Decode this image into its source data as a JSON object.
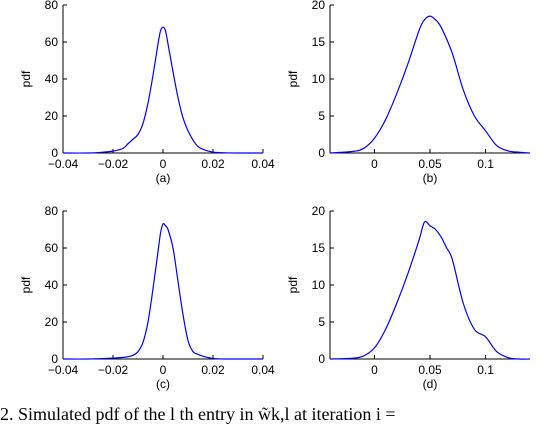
{
  "caption": "2.   Simulated pdf of the l th entry in w̃k,l at iteration i =",
  "colors": {
    "line": "#0000ff",
    "axis": "#000000"
  },
  "chart_data": [
    {
      "type": "line",
      "sublabel": "(a)",
      "ylabel": "pdf",
      "xlim": [
        -0.04,
        0.04
      ],
      "ylim": [
        0,
        80
      ],
      "xticks": [
        -0.04,
        -0.02,
        0,
        0.02,
        0.04
      ],
      "xticklabels": [
        "−0.04",
        "−0.02",
        "0",
        "0.02",
        "0.04"
      ],
      "yticks": [
        0,
        20,
        40,
        60,
        80
      ],
      "yticklabels": [
        "0",
        "20",
        "40",
        "60",
        "80"
      ],
      "x": [
        -0.04,
        -0.03,
        -0.025,
        -0.02,
        -0.016,
        -0.014,
        -0.012,
        -0.01,
        -0.008,
        -0.006,
        -0.004,
        -0.002,
        -0.001,
        0,
        0.001,
        0.002,
        0.004,
        0.006,
        0.008,
        0.01,
        0.012,
        0.014,
        0.016,
        0.02,
        0.025,
        0.03,
        0.04
      ],
      "y": [
        0,
        0,
        0.3,
        1,
        2.5,
        5,
        7.5,
        10,
        16,
        27,
        42,
        59,
        66,
        68,
        66,
        59,
        44,
        30,
        19,
        12,
        7,
        3.5,
        2,
        0.5,
        0.1,
        0,
        0
      ]
    },
    {
      "type": "line",
      "sublabel": "(b)",
      "ylabel": "pdf",
      "xlim": [
        -0.04,
        0.14
      ],
      "ylim": [
        0,
        20
      ],
      "xticks": [
        0,
        0.05,
        0.1
      ],
      "xticklabels": [
        "0",
        "0.05",
        "0.1"
      ],
      "yticks": [
        0,
        5,
        10,
        15,
        20
      ],
      "yticklabels": [
        "0",
        "5",
        "10",
        "15",
        "20"
      ],
      "x": [
        -0.04,
        -0.02,
        -0.01,
        0,
        0.01,
        0.02,
        0.03,
        0.04,
        0.045,
        0.05,
        0.055,
        0.06,
        0.07,
        0.08,
        0.09,
        0.1,
        0.11,
        0.12,
        0.13,
        0.14
      ],
      "y": [
        0,
        0.2,
        0.6,
        2,
        4.5,
        8,
        12,
        16.5,
        18,
        18.5,
        18,
        17,
        13.5,
        8.5,
        5,
        3,
        1,
        0.3,
        0.1,
        0
      ]
    },
    {
      "type": "line",
      "sublabel": "(c)",
      "ylabel": "pdf",
      "xlim": [
        -0.04,
        0.04
      ],
      "ylim": [
        0,
        80
      ],
      "xticks": [
        -0.04,
        -0.02,
        0,
        0.02,
        0.04
      ],
      "xticklabels": [
        "−0.04",
        "−0.02",
        "0",
        "0.02",
        "0.04"
      ],
      "yticks": [
        0,
        20,
        40,
        60,
        80
      ],
      "yticklabels": [
        "0",
        "20",
        "40",
        "60",
        "80"
      ],
      "x": [
        -0.04,
        -0.03,
        -0.02,
        -0.015,
        -0.012,
        -0.01,
        -0.008,
        -0.006,
        -0.004,
        -0.002,
        -0.001,
        0,
        0.001,
        0.002,
        0.004,
        0.006,
        0.008,
        0.01,
        0.012,
        0.014,
        0.016,
        0.02,
        0.025,
        0.04
      ],
      "y": [
        0,
        0,
        0.5,
        1,
        2,
        4,
        9,
        20,
        38,
        58,
        68,
        73,
        72,
        70,
        60,
        42,
        24,
        10,
        4,
        2.5,
        1.5,
        0.3,
        0,
        0
      ]
    },
    {
      "type": "line",
      "sublabel": "(d)",
      "ylabel": "pdf",
      "xlim": [
        -0.04,
        0.14
      ],
      "ylim": [
        0,
        20
      ],
      "xticks": [
        0,
        0.05,
        0.1
      ],
      "xticklabels": [
        "0",
        "0.05",
        "0.1"
      ],
      "yticks": [
        0,
        5,
        10,
        15,
        20
      ],
      "yticklabels": [
        "0",
        "5",
        "10",
        "15",
        "20"
      ],
      "x": [
        -0.04,
        -0.02,
        -0.01,
        0,
        0.01,
        0.02,
        0.03,
        0.04,
        0.045,
        0.05,
        0.055,
        0.06,
        0.065,
        0.07,
        0.08,
        0.09,
        0.1,
        0.11,
        0.12,
        0.13,
        0.14
      ],
      "y": [
        0,
        0.1,
        0.4,
        1.5,
        4,
        7.5,
        11.5,
        16,
        18.5,
        18,
        17.5,
        16.5,
        15,
        13.5,
        7.5,
        4,
        3,
        1,
        0.2,
        0,
        0
      ]
    }
  ]
}
